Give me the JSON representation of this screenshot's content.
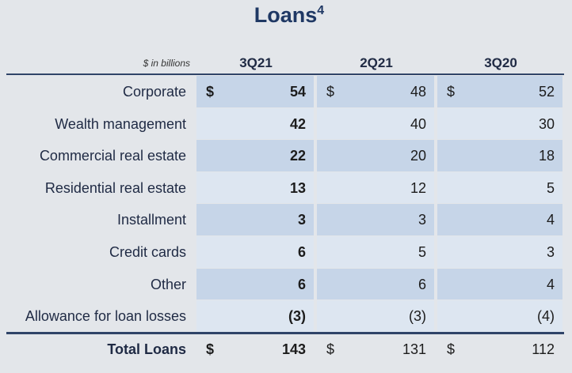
{
  "header": {
    "title": "Loans",
    "title_note": "4"
  },
  "table": {
    "unit_label": "$ in billions",
    "columns": [
      "3Q21",
      "2Q21",
      "3Q20"
    ],
    "rows": [
      {
        "label": "Corporate",
        "currency": "$",
        "values": [
          "54",
          "48",
          "52"
        ]
      },
      {
        "label": "Wealth management",
        "values": [
          "42",
          "40",
          "30"
        ]
      },
      {
        "label": "Commercial real estate",
        "values": [
          "22",
          "20",
          "18"
        ]
      },
      {
        "label": "Residential real estate",
        "values": [
          "13",
          "12",
          "5"
        ]
      },
      {
        "label": "Installment",
        "values": [
          "3",
          "3",
          "4"
        ]
      },
      {
        "label": "Credit cards",
        "values": [
          "6",
          "5",
          "3"
        ]
      },
      {
        "label": "Other",
        "values": [
          "6",
          "6",
          "4"
        ]
      },
      {
        "label": "Allowance for loan losses",
        "values": [
          "(3)",
          "(3)",
          "(4)"
        ]
      }
    ],
    "total": {
      "label": "Total Loans",
      "currency": "$",
      "values": [
        "143",
        "131",
        "112"
      ]
    }
  }
}
